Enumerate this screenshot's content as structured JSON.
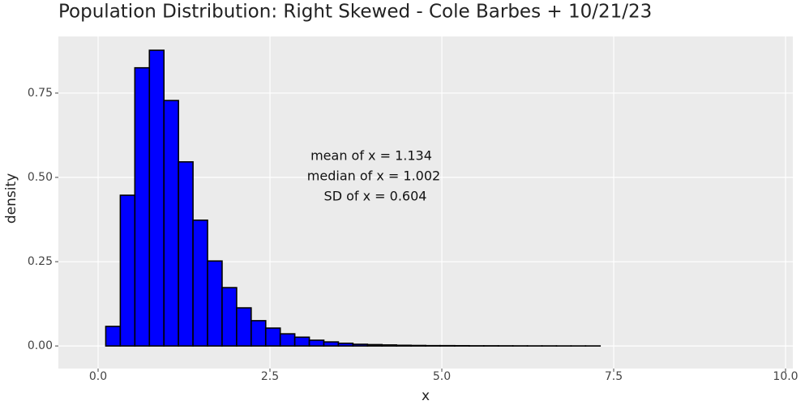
{
  "chart_data": {
    "type": "histogram",
    "title": "Population Distribution: Right Skewed -  Cole Barbes + 10/21/23",
    "x_label": "x",
    "y_label": "density",
    "annotation": [
      "mean of x = 1.134",
      "median of x = 1.002",
      "SD of x = 0.604"
    ],
    "bins": [
      -0.1,
      0.1115,
      0.323,
      0.5345,
      0.746,
      0.9575,
      1.169,
      1.3805,
      1.592,
      1.8035,
      2.015,
      2.2265,
      2.438,
      2.6495,
      2.861,
      3.0725,
      3.284,
      3.4955,
      3.707,
      3.9185,
      4.13,
      4.3415,
      4.553,
      4.7645,
      4.976,
      5.1875,
      5.399,
      5.6105,
      5.822,
      6.0335,
      6.245,
      6.4565,
      6.668,
      6.8795,
      7.091,
      7.3025,
      7.514,
      7.7255,
      7.937,
      8.1485,
      8.36,
      8.5715,
      8.783,
      8.9945,
      9.206,
      9.4175,
      9.629
    ],
    "values": [
      0,
      0.058,
      0.447,
      0.825,
      0.877,
      0.728,
      0.546,
      0.373,
      0.252,
      0.173,
      0.113,
      0.075,
      0.053,
      0.036,
      0.026,
      0.017,
      0.012,
      0.008,
      0.005,
      0.004,
      0.003,
      0.002,
      0.0015,
      0.001,
      0.001,
      0.0008,
      0.0005,
      0.0005,
      0.0004,
      0.0003,
      0.0002,
      0.0002,
      0.0001,
      0.0001,
      0.0001,
      0,
      0,
      0,
      0,
      0,
      0,
      0,
      0,
      0,
      0,
      0
    ],
    "color": "#0000ff",
    "edgecolor": "#000000",
    "xlim": [
      -0.578,
      10.106
    ],
    "ylim": [
      -0.067,
      0.918
    ],
    "xticks": [
      {
        "value": 0,
        "label": "0.0"
      },
      {
        "value": 2.5,
        "label": "2.5"
      },
      {
        "value": 5,
        "label": "5.0"
      },
      {
        "value": 7.5,
        "label": "7.5"
      },
      {
        "value": 10,
        "label": "10.0"
      }
    ],
    "yticks": [
      {
        "value": 0,
        "label": "0.00"
      },
      {
        "value": 0.25,
        "label": "0.25"
      },
      {
        "value": 0.5,
        "label": "0.50"
      },
      {
        "value": 0.75,
        "label": "0.75"
      }
    ],
    "grid": true
  }
}
